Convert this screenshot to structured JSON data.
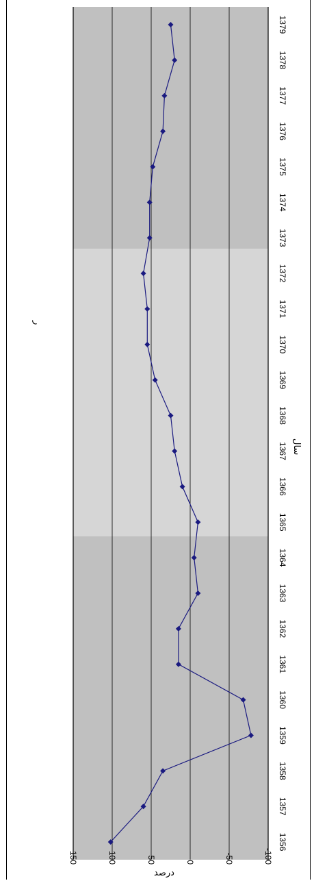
{
  "chart_data": {
    "type": "line",
    "x": [
      1356,
      1357,
      1358,
      1359,
      1360,
      1361,
      1362,
      1363,
      1364,
      1365,
      1366,
      1367,
      1368,
      1369,
      1370,
      1371,
      1372,
      1373,
      1374,
      1375,
      1376,
      1377,
      1378,
      1379
    ],
    "x_tick_labels": [
      "1356",
      "1357",
      "1358",
      "1359",
      "1360",
      "1361",
      "1362",
      "1363",
      "1364",
      "1365",
      "1366",
      "1367",
      "1368",
      "1369",
      "1370",
      "1371",
      "1372",
      "1373",
      "1374",
      "1375",
      "1376",
      "1377",
      "1378",
      "1379"
    ],
    "series": [
      {
        "values": [
          102,
          60,
          35,
          -78,
          -68,
          15,
          15,
          -10,
          -5,
          -10,
          10,
          20,
          25,
          45,
          55,
          55,
          60,
          52,
          52,
          48,
          35,
          33,
          20,
          25
        ]
      }
    ],
    "y_ticks": [
      150,
      100,
      50,
      0,
      -50,
      -100
    ],
    "y_tick_labels": [
      "150",
      "100",
      "50",
      "0",
      "-50",
      "-100"
    ],
    "ylim": [
      -100,
      150
    ],
    "xlabel": "سال",
    "ylabel": "درصد",
    "extra_text": "ر",
    "grid": true,
    "rotation": "chart rotated 90° clockwise; years run top (1379) to bottom (1356)",
    "colors": {
      "line": "#1a1a80",
      "plot_bg": "#c0c0c0",
      "band_bg": "#d6d6d6",
      "grid": "#000000"
    }
  }
}
